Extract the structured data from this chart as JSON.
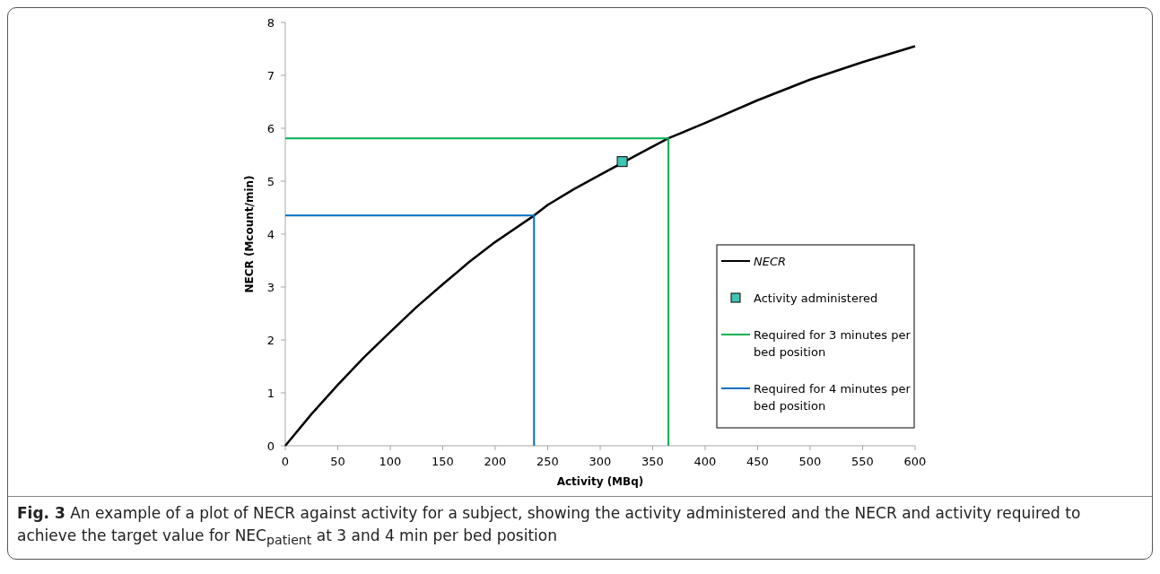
{
  "chart_data": {
    "type": "line",
    "xlabel": "Activity (MBq)",
    "ylabel": "NECR (Mcount/min)",
    "xlim": [
      0,
      600
    ],
    "xticks": [
      0,
      50,
      100,
      150,
      200,
      250,
      300,
      350,
      400,
      450,
      500,
      550,
      600
    ],
    "ylim": [
      0,
      8
    ],
    "yticks": [
      0,
      1,
      2,
      3,
      4,
      5,
      6,
      7,
      8
    ],
    "legend": "right",
    "grid": false,
    "series": [
      {
        "name": "NECR",
        "color": "#000000",
        "marker": "none",
        "x": [
          0,
          25,
          50,
          75,
          100,
          125,
          150,
          175,
          200,
          237,
          250,
          275,
          300,
          340,
          365,
          400,
          450,
          500,
          550,
          600
        ],
        "values": [
          0,
          0.6,
          1.15,
          1.67,
          2.15,
          2.62,
          3.05,
          3.47,
          3.85,
          4.35,
          4.55,
          4.85,
          5.12,
          5.55,
          5.81,
          6.1,
          6.53,
          6.92,
          7.25,
          7.55
        ]
      },
      {
        "name": "Activity administered",
        "type": "scatter",
        "color": "#40c4b4",
        "marker": "square",
        "x": [
          321
        ],
        "values": [
          5.37
        ]
      },
      {
        "name": "Required for 3 minutes per bed position",
        "color": "#00b050",
        "marker": "none",
        "x": [
          0,
          365,
          365
        ],
        "values": [
          5.81,
          5.81,
          0
        ]
      },
      {
        "name": "Required for 4 minutes per bed position",
        "color": "#0070c0",
        "marker": "none",
        "x": [
          0,
          237,
          237
        ],
        "values": [
          4.35,
          4.35,
          0
        ]
      }
    ],
    "annotations": [
      "Fig. 3 An example of a plot of NECR against activity for a subject, showing the activity administered and the NECR and activity required to achieve the target value for NEC$_{patient}$ at 3 and 4 min per bed position"
    ]
  }
}
